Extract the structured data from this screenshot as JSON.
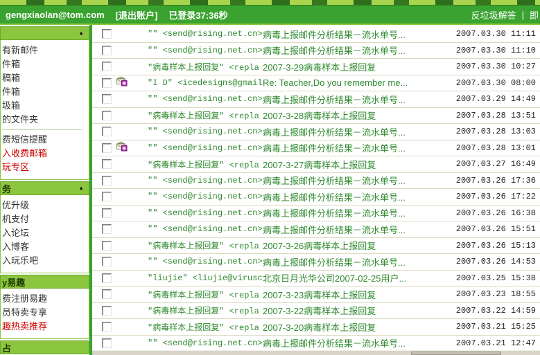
{
  "header": {
    "email": "gengxiaolan@tom.com",
    "logout": "[退出账户]",
    "session": "已登录37:36秒",
    "links": [
      "反垃圾解答",
      "即"
    ]
  },
  "sidebar": {
    "sections": [
      {
        "title": "",
        "arrow": "▲",
        "items": [
          {
            "label": "有新邮件"
          },
          {
            "label": "件箱"
          },
          {
            "label": "稿箱"
          },
          {
            "label": "件箱"
          },
          {
            "label": "圾箱"
          },
          {
            "label": "的文件夹"
          },
          {
            "divider": true
          },
          {
            "label": "费短信提醒"
          },
          {
            "label": "入收费邮箱",
            "red": true
          },
          {
            "label": "玩专区",
            "red": true
          }
        ]
      },
      {
        "title": "务",
        "arrow": "▲",
        "items": [
          {
            "label": "优升级"
          },
          {
            "label": "机支付"
          },
          {
            "label": "入论坛"
          },
          {
            "label": "入博客"
          },
          {
            "label": "入玩乐吧"
          }
        ]
      },
      {
        "title": "y易趣",
        "items": [
          {
            "label": "费注册易趣"
          },
          {
            "label": "员特卖专享"
          },
          {
            "label": "趣热卖推荐",
            "red": true
          }
        ]
      },
      {
        "title": "占",
        "items": []
      }
    ]
  },
  "list": {
    "emails": [
      {
        "attachment": false,
        "from": "\"\" <send@rising.net.cn>",
        "subject": "病毒上报邮件分析结果－流水单号...",
        "date": "2007.03.30 11:11"
      },
      {
        "attachment": false,
        "from": "\"\" <send@rising.net.cn>",
        "subject": "病毒上报邮件分析结果－流水单号...",
        "date": "2007.03.30 11:10"
      },
      {
        "attachment": false,
        "from": "\"病毒样本上报回复\" <repla",
        "subject": "2007-3-29病毒样本上报回复",
        "date": "2007.03.30 10:27"
      },
      {
        "attachment": true,
        "from": "\"I D\" <icedesigns@gmail.c",
        "subject": "Re: Teacher,Do you remember me...",
        "date": "2007.03.30 08:00"
      },
      {
        "attachment": false,
        "from": "\"\" <send@rising.net.cn>",
        "subject": "病毒上报邮件分析结果－流水单号...",
        "date": "2007.03.29 14:49"
      },
      {
        "attachment": false,
        "from": "\"病毒样本上报回复\" <repla",
        "subject": "2007-3-28病毒样本上报回复",
        "date": "2007.03.28 13:51"
      },
      {
        "attachment": false,
        "from": "\"\" <send@rising.net.cn>",
        "subject": "病毒上报邮件分析结果－流水单号...",
        "date": "2007.03.28 13:03"
      },
      {
        "attachment": true,
        "from": "\"\" <send@rising.net.cn>",
        "subject": "病毒上报邮件分析结果－流水单号...",
        "date": "2007.03.28 13:01"
      },
      {
        "attachment": false,
        "from": "\"病毒样本上报回复\" <repla",
        "subject": "2007-3-27病毒样本上报回复",
        "date": "2007.03.27 16:49"
      },
      {
        "attachment": false,
        "from": "\"\" <send@rising.net.cn>",
        "subject": "病毒上报邮件分析结果－流水单号...",
        "date": "2007.03.26 17:36"
      },
      {
        "attachment": false,
        "from": "\"\" <send@rising.net.cn>",
        "subject": "病毒上报邮件分析结果－流水单号...",
        "date": "2007.03.26 17:22"
      },
      {
        "attachment": false,
        "from": "\"\" <send@rising.net.cn>",
        "subject": "病毒上报邮件分析结果－流水单号...",
        "date": "2007.03.26 16:38"
      },
      {
        "attachment": false,
        "from": "\"\" <send@rising.net.cn>",
        "subject": "病毒上报邮件分析结果－流水单号...",
        "date": "2007.03.26 15:51"
      },
      {
        "attachment": false,
        "from": "\"病毒样本上报回复\" <repla",
        "subject": "2007-3-26病毒样本上报回复",
        "date": "2007.03.26 15:13"
      },
      {
        "attachment": false,
        "from": "\"\" <send@rising.net.cn>",
        "subject": "病毒上报邮件分析结果－流水单号...",
        "date": "2007.03.26 14:53"
      },
      {
        "attachment": false,
        "from": "\"liujie\" <liujie@viruschi",
        "subject": "北京日月光华公司2007-02-25用户...",
        "date": "2007.03.25 15:38"
      },
      {
        "attachment": false,
        "from": "\"病毒样本上报回复\" <repla",
        "subject": "2007-3-23病毒样本上报回复",
        "date": "2007.03.23 18:55"
      },
      {
        "attachment": false,
        "from": "\"病毒样本上报回复\" <repla",
        "subject": "2007-3-22病毒样本上报回复",
        "date": "2007.03.22 14:59"
      },
      {
        "attachment": false,
        "from": "\"病毒样本上报回复\" <repla",
        "subject": "2007-3-20病毒样本上报回复",
        "date": "2007.03.21 15:25"
      },
      {
        "attachment": false,
        "from": "\"\" <send@rising.net.cn>",
        "subject": "病毒上报邮件分析结果－流水单号...",
        "date": "2007.03.21 12:47"
      }
    ]
  },
  "colors": {
    "header_green": "#3aa330",
    "lime_green": "#8cc63f",
    "text_green": "#2f8a2f",
    "alert_red": "#cc0000",
    "row_divider": "#d9d9c1"
  }
}
